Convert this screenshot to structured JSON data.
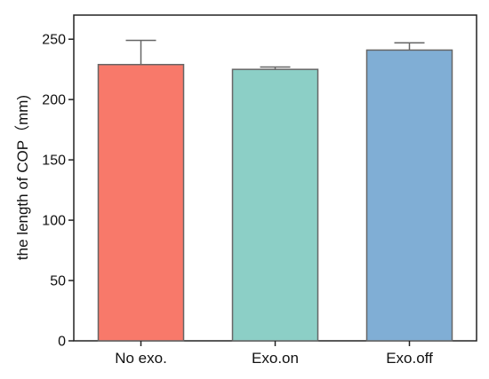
{
  "chart_data": {
    "type": "bar",
    "categories": [
      "No exo.",
      "Exo.on",
      "Exo.off"
    ],
    "values": [
      229,
      225,
      241
    ],
    "error_upper": [
      249,
      227,
      247
    ],
    "colors": [
      "#F8796A",
      "#8CCFC6",
      "#80AED5"
    ],
    "title": "",
    "xlabel": "",
    "ylabel": "the length of COP（mm)",
    "ylim": [
      0,
      270
    ],
    "yticks": [
      0,
      50,
      100,
      150,
      200,
      250
    ],
    "grid": false
  }
}
